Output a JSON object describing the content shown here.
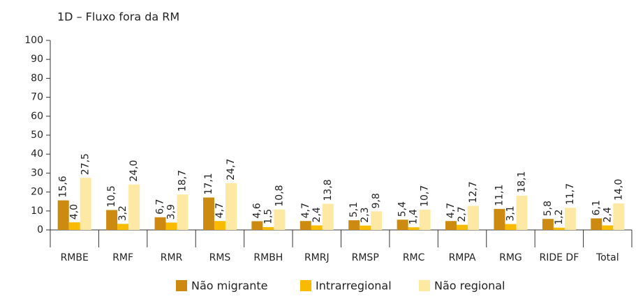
{
  "chart_data": {
    "type": "bar",
    "title": "1D – Fluxo fora da RM",
    "categories": [
      "RMBE",
      "RMF",
      "RMR",
      "RMS",
      "RMBH",
      "RMRJ",
      "RMSP",
      "RMC",
      "RMPA",
      "RMG",
      "RIDE DF",
      "Total"
    ],
    "series": [
      {
        "name": "Não migrante",
        "color": "#cc8a10",
        "values": [
          15.6,
          10.5,
          6.7,
          17.1,
          4.6,
          4.7,
          5.1,
          5.4,
          4.7,
          11.1,
          5.8,
          6.1
        ],
        "value_labels": [
          "15,6",
          "10,5",
          "6,7",
          "17,1",
          "4,6",
          "4,7",
          "5,1",
          "5,4",
          "4,7",
          "11,1",
          "5,8",
          "6,1"
        ]
      },
      {
        "name": "Intrarregional",
        "color": "#f8bb00",
        "values": [
          4.0,
          3.2,
          3.9,
          4.7,
          1.5,
          2.4,
          2.3,
          1.4,
          2.7,
          3.1,
          1.2,
          2.4
        ],
        "value_labels": [
          "4,0",
          "3,2",
          "3,9",
          "4,7",
          "1,5",
          "2,4",
          "2,3",
          "1,4",
          "2,7",
          "3,1",
          "1,2",
          "2,4"
        ]
      },
      {
        "name": "Não regional",
        "color": "#fde9a3",
        "values": [
          27.5,
          24.0,
          18.7,
          24.7,
          10.8,
          13.8,
          9.8,
          10.7,
          12.7,
          18.1,
          11.7,
          14.0
        ],
        "value_labels": [
          "27,5",
          "24,0",
          "18,7",
          "24,7",
          "10,8",
          "13,8",
          "9,8",
          "10,7",
          "12,7",
          "18,1",
          "11,7",
          "14,0"
        ]
      }
    ],
    "ylim": [
      0,
      100
    ],
    "yticks": [
      0,
      10,
      20,
      30,
      40,
      50,
      60,
      70,
      80,
      90,
      100
    ],
    "grid": false,
    "legend": "bottom"
  }
}
